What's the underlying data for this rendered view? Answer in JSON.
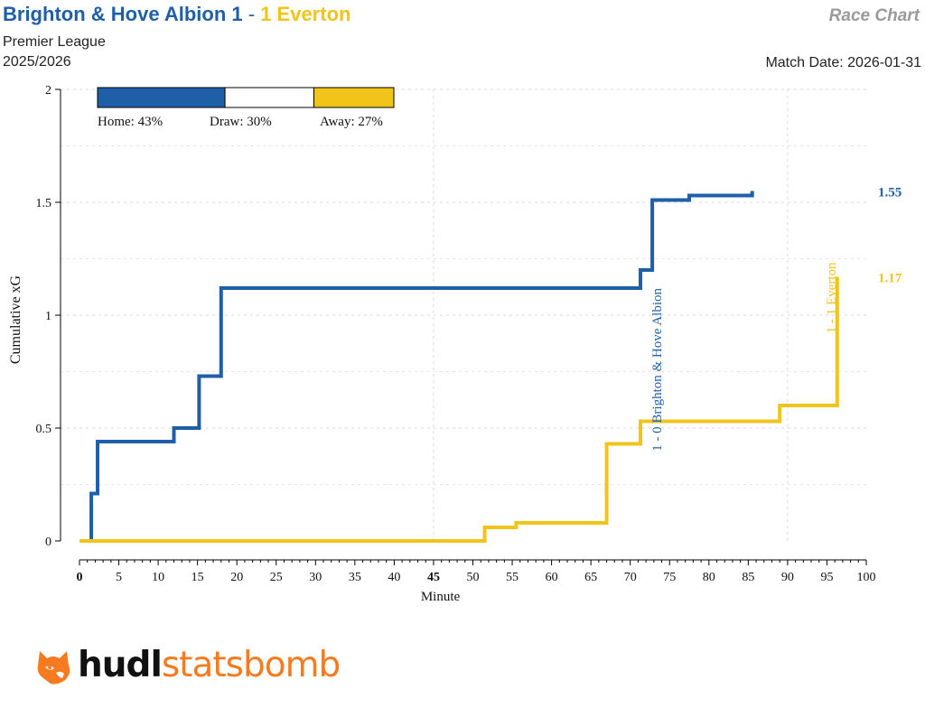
{
  "header": {
    "home_title": "Brighton & Hove Albion 1",
    "separator": " - ",
    "away_title": "1 Everton",
    "competition": "Premier League",
    "season": "2025/2026",
    "chart_type": "Race Chart",
    "match_date": "Match Date: 2026-01-31"
  },
  "colors": {
    "home": "#1f5fa8",
    "away": "#f0c419",
    "draw": "#ffffff"
  },
  "logo": {
    "part1": "hudl",
    "part2": "statsbomb",
    "icon": "fox-head-icon"
  },
  "chart_data": {
    "type": "line",
    "xlabel": "Minute",
    "ylabel": "Cumulative xG",
    "xlim": [
      0,
      100
    ],
    "ylim": [
      0,
      2
    ],
    "x_ticks": [
      0,
      5,
      10,
      15,
      20,
      25,
      30,
      35,
      40,
      45,
      50,
      55,
      60,
      65,
      70,
      75,
      80,
      85,
      90,
      95,
      100
    ],
    "y_ticks": [
      0,
      0.5,
      1,
      1.5,
      2
    ],
    "y_tick_labels": [
      "0",
      "0.5",
      "1",
      "1.5",
      "2"
    ],
    "grid": true,
    "probabilities": [
      {
        "label": "Home: 43%",
        "value": 43
      },
      {
        "label": "Draw: 30%",
        "value": 30
      },
      {
        "label": "Away: 27%",
        "value": 27
      }
    ],
    "series": [
      {
        "name": "Brighton & Hove Albion",
        "color": "#1f5fa8",
        "final_label": "1.55",
        "steps": [
          [
            0,
            0
          ],
          [
            1.5,
            0.21
          ],
          [
            2.3,
            0.44
          ],
          [
            12,
            0.5
          ],
          [
            15.2,
            0.73
          ],
          [
            18,
            1.12
          ],
          [
            71.3,
            1.2
          ],
          [
            72.8,
            1.51
          ],
          [
            77.5,
            1.53
          ],
          [
            85.5,
            1.55
          ]
        ]
      },
      {
        "name": "Everton",
        "color": "#f0c419",
        "final_label": "1.17",
        "steps": [
          [
            0,
            0
          ],
          [
            51.5,
            0.06
          ],
          [
            55.5,
            0.08
          ],
          [
            67,
            0.43
          ],
          [
            71.3,
            0.53
          ],
          [
            89,
            0.6
          ],
          [
            96.3,
            1.17
          ]
        ]
      }
    ],
    "annotations": [
      {
        "text": "1 - 0 Brighton & Hove Albion",
        "minute": 72.8,
        "team": "home"
      },
      {
        "text": "1 - 1 Everton",
        "minute": 96.3,
        "team": "away"
      }
    ]
  }
}
